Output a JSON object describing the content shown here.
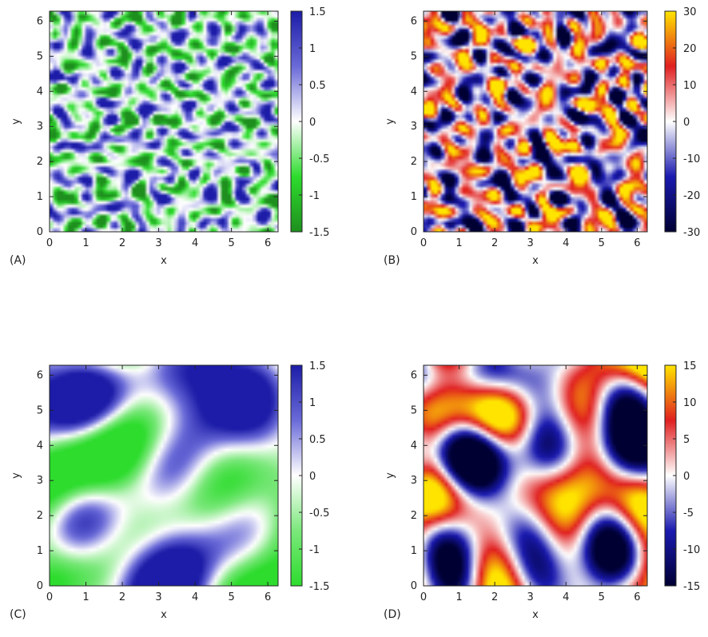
{
  "chart_data": [
    {
      "type": "heatmap",
      "panel_label": "(A)",
      "xlabel": "x",
      "ylabel": "y",
      "xlim": [
        0,
        6.283
      ],
      "ylim": [
        0,
        6.283
      ],
      "x_ticks": [
        "0",
        "1",
        "2",
        "3",
        "4",
        "5",
        "6"
      ],
      "y_ticks": [
        "0",
        "1",
        "2",
        "3",
        "4",
        "5",
        "6"
      ],
      "colorbar": {
        "range": [
          -1.5,
          1.5
        ],
        "ticks": [
          "1.5",
          "1",
          "0.5",
          "0",
          "-0.5",
          "-1",
          "-1.5"
        ],
        "colors": [
          "#1e8f1e",
          "#2ddc2d",
          "#ffffff",
          "#6a6ad8",
          "#1c1ca8"
        ]
      },
      "field_description": "fine-scale cellular pattern"
    },
    {
      "type": "heatmap",
      "panel_label": "(B)",
      "xlabel": "x",
      "ylabel": "y",
      "xlim": [
        0,
        6.283
      ],
      "ylim": [
        0,
        6.283
      ],
      "x_ticks": [
        "0",
        "1",
        "2",
        "3",
        "4",
        "5",
        "6"
      ],
      "y_ticks": [
        "0",
        "1",
        "2",
        "3",
        "4",
        "5",
        "6"
      ],
      "colorbar": {
        "range": [
          -30,
          30
        ],
        "ticks": [
          "30",
          "20",
          "10",
          "0",
          "-10",
          "-20",
          "-30"
        ],
        "colors": [
          "#000033",
          "#1a1ab0",
          "#ffffff",
          "#e02020",
          "#ffe400"
        ]
      },
      "field_description": "small-scale turbulent vorticity"
    },
    {
      "type": "heatmap",
      "panel_label": "(C)",
      "xlabel": "x",
      "ylabel": "y",
      "xlim": [
        0,
        6.283
      ],
      "ylim": [
        0,
        6.283
      ],
      "x_ticks": [
        "0",
        "1",
        "2",
        "3",
        "4",
        "5",
        "6"
      ],
      "y_ticks": [
        "0",
        "1",
        "2",
        "3",
        "4",
        "5",
        "6"
      ],
      "colorbar": {
        "range": [
          -1.5,
          1.5
        ],
        "ticks": [
          "1.5",
          "1",
          "0.5",
          "0",
          "-0.5",
          "-1",
          "-1.5"
        ],
        "colors": [
          "#2ddc2d",
          "#7be87b",
          "#ffffff",
          "#6a6ad8",
          "#1c1ca8"
        ]
      },
      "field_description": "large-scale smooth blobs"
    },
    {
      "type": "heatmap",
      "panel_label": "(D)",
      "xlabel": "x",
      "ylabel": "y",
      "xlim": [
        0,
        6.283
      ],
      "ylim": [
        0,
        6.283
      ],
      "x_ticks": [
        "0",
        "1",
        "2",
        "3",
        "4",
        "5",
        "6"
      ],
      "y_ticks": [
        "0",
        "1",
        "2",
        "3",
        "4",
        "5",
        "6"
      ],
      "colorbar": {
        "range": [
          -15,
          15
        ],
        "ticks": [
          "15",
          "10",
          "5",
          "0",
          "-5",
          "-10",
          "-15"
        ],
        "colors": [
          "#000033",
          "#1a1ab0",
          "#ffffff",
          "#e02020",
          "#ffe400"
        ]
      },
      "field_description": "large-scale vortex filaments"
    }
  ]
}
